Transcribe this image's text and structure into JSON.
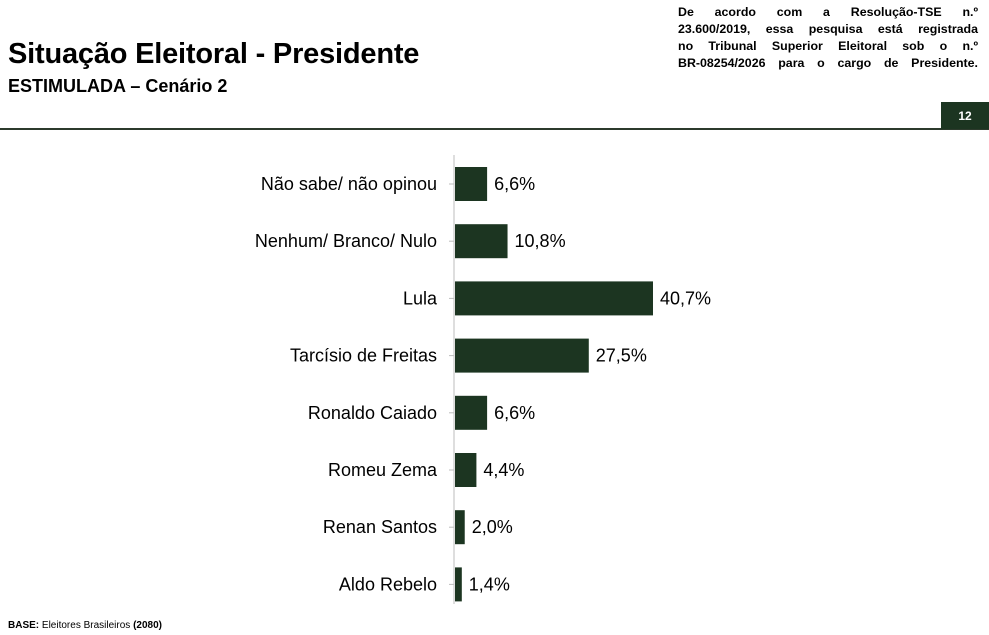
{
  "header": {
    "title": "Situação Eleitoral - Presidente",
    "subtitle": "ESTIMULADA – Cenário 2",
    "notice_lines": [
      "De acordo com a Resolução-TSE n.º",
      "23.600/2019, essa pesquisa está registrada",
      "no Tribunal Superior Eleitoral sob o n.º",
      "BR-08254/2026 para o cargo de Presidente."
    ],
    "page_number": "12"
  },
  "footer": {
    "base_label": "BASE:",
    "base_text": "Eleitores Brasileiros",
    "base_count": "(2080)"
  },
  "colors": {
    "bar": "#1c3521",
    "axis": "#bdbdbd",
    "rule": "#2c3a2c"
  },
  "chart_data": {
    "type": "bar",
    "orientation": "horizontal",
    "categories": [
      "Não sabe/ não opinou",
      "Nenhum/ Branco/ Nulo",
      "Lula",
      "Tarcísio de Freitas",
      "Ronaldo Caiado",
      "Romeu Zema",
      "Renan Santos",
      "Aldo Rebelo"
    ],
    "values": [
      6.6,
      10.8,
      40.7,
      27.5,
      6.6,
      4.4,
      2.0,
      1.4
    ],
    "value_labels": [
      "6,6%",
      "10,8%",
      "40,7%",
      "27,5%",
      "6,6%",
      "4,4%",
      "2,0%",
      "1,4%"
    ],
    "unit": "%",
    "grid": false,
    "legend": "none"
  }
}
